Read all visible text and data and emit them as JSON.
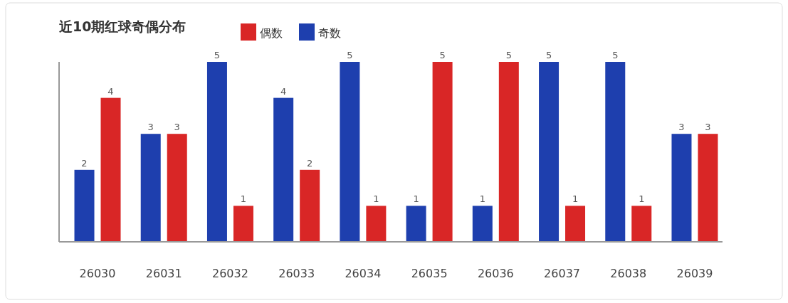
{
  "chart_data": {
    "type": "bar",
    "title": "近10期红球奇偶分布",
    "categories": [
      "26030",
      "26031",
      "26032",
      "26033",
      "26034",
      "26035",
      "26036",
      "26037",
      "26038",
      "26039"
    ],
    "series": [
      {
        "name": "偶数",
        "color": "#d92626",
        "values": [
          4,
          3,
          1,
          2,
          1,
          5,
          5,
          1,
          1,
          3
        ]
      },
      {
        "name": "奇数",
        "color": "#1e3fae",
        "values": [
          2,
          3,
          5,
          4,
          5,
          1,
          1,
          5,
          5,
          3
        ]
      }
    ],
    "data_labels": true,
    "legend": "top",
    "grid": false
  }
}
